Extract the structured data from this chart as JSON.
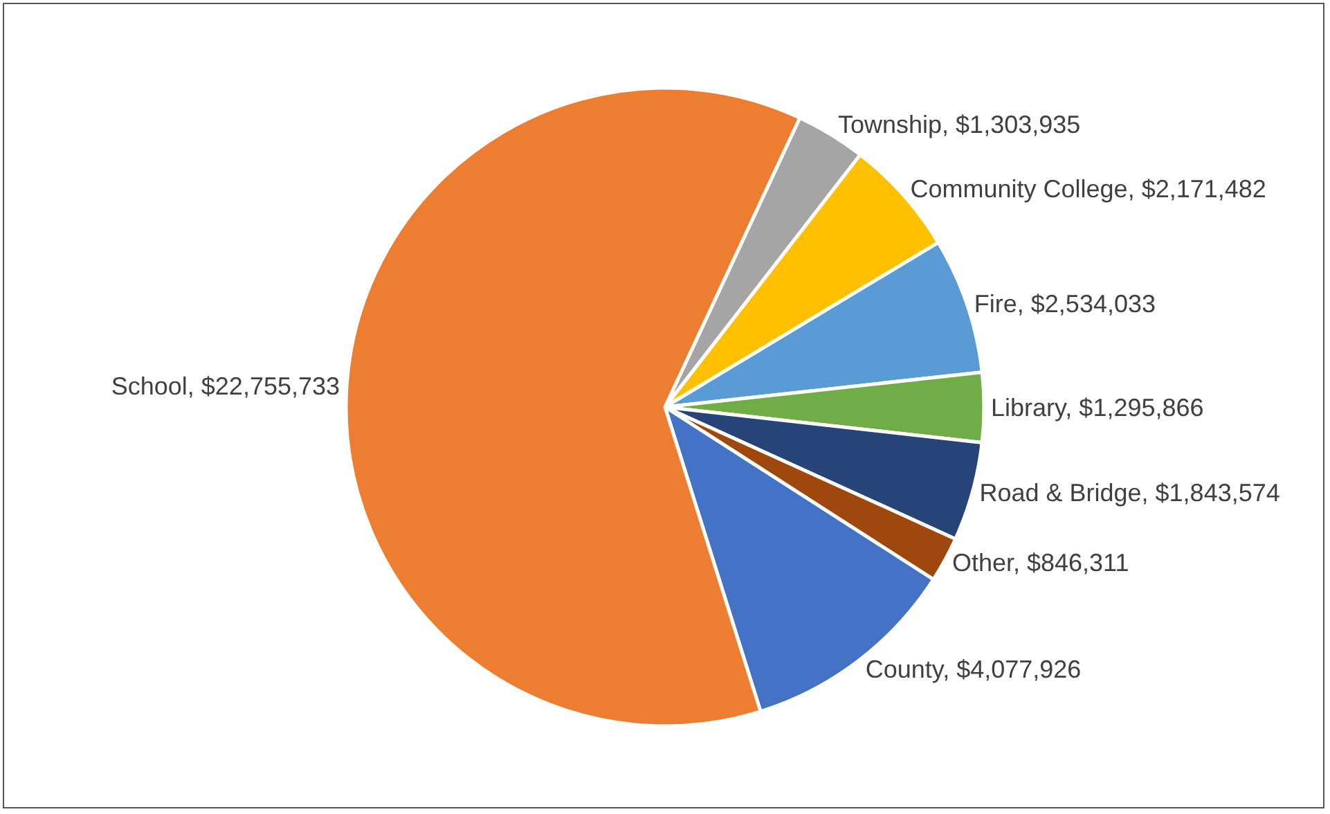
{
  "chart_data": {
    "type": "pie",
    "categories": [
      "Township",
      "Community College",
      "Fire",
      "Library",
      "Road & Bridge",
      "Other",
      "County",
      "School"
    ],
    "values": [
      1303935,
      2171482,
      2534033,
      1295866,
      1843574,
      846311,
      4077926,
      22755733
    ],
    "value_labels": [
      "$1,303,935",
      "$2,171,482",
      "$2,534,033",
      "$1,295,866",
      "$1,843,574",
      "$846,311",
      "$4,077,926",
      "$22,755,733"
    ],
    "colors": [
      "#a5a5a5",
      "#ffc000",
      "#5b9bd5",
      "#70ad47",
      "#264478",
      "#9e480e",
      "#4472c4",
      "#ed7d31"
    ],
    "legend": false
  }
}
